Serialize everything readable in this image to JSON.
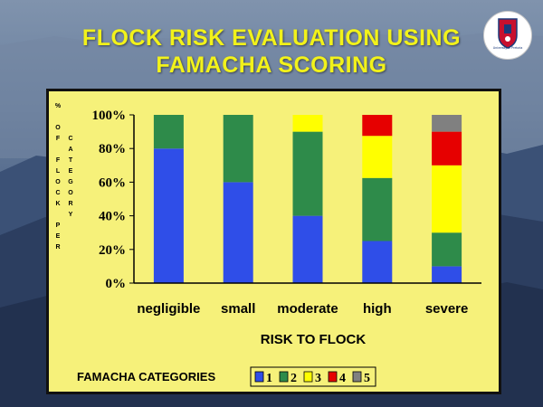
{
  "slide": {
    "title_line1": "FLOCK RISK EVALUATION USING",
    "title_line2": "FAMACHA SCORING",
    "logo_caption": "University of Pretoria"
  },
  "colors": {
    "panel_bg": "#f6f17a",
    "title": "#f2f21a",
    "cat1": "#2f4ee8",
    "cat2": "#2e8b4a",
    "cat3": "#ffff00",
    "cat4": "#e60000",
    "cat5": "#808080"
  },
  "chart_data": {
    "type": "bar",
    "stacked": true,
    "percent": true,
    "categories": [
      "negligible",
      "small",
      "moderate",
      "high",
      "severe"
    ],
    "xlabel": "RISK TO FLOCK",
    "ylabel_columns": [
      [
        "%",
        "",
        "O",
        "F",
        "",
        "F",
        "L",
        "O",
        "C",
        "K",
        "",
        "P",
        "E",
        "R"
      ],
      [
        "",
        "",
        "",
        "C",
        "A",
        "T",
        "E",
        "G",
        "O",
        "R",
        "Y"
      ]
    ],
    "yticks": [
      "0%",
      "20%",
      "40%",
      "60%",
      "80%",
      "100%"
    ],
    "ylim": [
      0,
      100
    ],
    "legend_title": "FAMACHA CATEGORIES",
    "legend_position": "bottom",
    "series": [
      {
        "name": "1",
        "values": [
          80,
          60,
          40,
          25,
          10
        ]
      },
      {
        "name": "2",
        "values": [
          20,
          40,
          50,
          37.5,
          20
        ]
      },
      {
        "name": "3",
        "values": [
          0,
          0,
          10,
          25,
          40
        ]
      },
      {
        "name": "4",
        "values": [
          0,
          0,
          0,
          12.5,
          20
        ]
      },
      {
        "name": "5",
        "values": [
          0,
          0,
          0,
          0,
          10
        ]
      }
    ]
  }
}
